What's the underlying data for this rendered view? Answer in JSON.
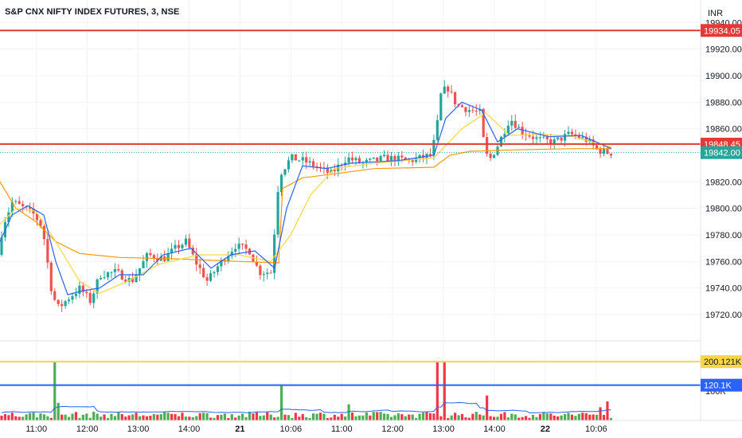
{
  "header": {
    "title": "S&P CNX NIFTY INDEX FUTURES, 3, NSE",
    "currency": "INR"
  },
  "colors": {
    "up": "#26a69a",
    "down": "#ef5350",
    "vol_up": "#4caf50",
    "vol_down": "#f23645",
    "ma_fast": "#2962ff",
    "ma_slow": "#ffd740",
    "vwap": "#ff9800",
    "level_red": "#e53935",
    "level_yellow": "#f9d648",
    "level_blue": "#2962ff",
    "last_price": "#26a69a"
  },
  "chart_data": {
    "type": "candlestick",
    "y_axis": {
      "ylim": [
        19705,
        19945
      ],
      "ticks": [
        "19940.00",
        "19920.00",
        "19900.00",
        "19880.00",
        "19860.00",
        "19820.00",
        "19800.00",
        "19780.00",
        "19760.00",
        "19740.00",
        "19720.00"
      ]
    },
    "x_axis": {
      "ticks": [
        {
          "label": "11:00",
          "bold": false
        },
        {
          "label": "12:00",
          "bold": false
        },
        {
          "label": "13:00",
          "bold": false
        },
        {
          "label": "14:00",
          "bold": false
        },
        {
          "label": "21",
          "bold": true
        },
        {
          "label": "10:06",
          "bold": false
        },
        {
          "label": "11:00",
          "bold": false
        },
        {
          "label": "12:00",
          "bold": false
        },
        {
          "label": "13:00",
          "bold": false
        },
        {
          "label": "14:00",
          "bold": false
        },
        {
          "label": "22",
          "bold": true
        },
        {
          "label": "10:06",
          "bold": false
        }
      ]
    },
    "price_levels": [
      {
        "label": "19934.05",
        "value": 19934.05,
        "color": "level_red"
      },
      {
        "label": "19848.45",
        "value": 19848.45,
        "color": "level_red"
      },
      {
        "label": "19842.00",
        "value": 19842.0,
        "color": "last_price",
        "dotted": true
      }
    ],
    "volume_pane": {
      "ylim": [
        0,
        260
      ],
      "tick": "100K",
      "levels": [
        {
          "label": "200.121K",
          "value": 200.121,
          "color": "level_yellow"
        },
        {
          "label": "120.1K",
          "value": 120.1,
          "color": "level_blue"
        }
      ]
    },
    "anchors": [
      {
        "x": 0,
        "p": 19765
      },
      {
        "x": 10,
        "p": 19790
      },
      {
        "x": 20,
        "p": 19805
      },
      {
        "x": 35,
        "p": 19800
      },
      {
        "x": 48,
        "p": 19795
      },
      {
        "x": 58,
        "p": 19785
      },
      {
        "x": 64,
        "p": 19760
      },
      {
        "x": 70,
        "p": 19735
      },
      {
        "x": 78,
        "p": 19725
      },
      {
        "x": 90,
        "p": 19732
      },
      {
        "x": 105,
        "p": 19740
      },
      {
        "x": 118,
        "p": 19730
      },
      {
        "x": 130,
        "p": 19750
      },
      {
        "x": 150,
        "p": 19752
      },
      {
        "x": 170,
        "p": 19745
      },
      {
        "x": 190,
        "p": 19765
      },
      {
        "x": 210,
        "p": 19762
      },
      {
        "x": 225,
        "p": 19770
      },
      {
        "x": 238,
        "p": 19775
      },
      {
        "x": 250,
        "p": 19760
      },
      {
        "x": 265,
        "p": 19745
      },
      {
        "x": 280,
        "p": 19758
      },
      {
        "x": 300,
        "p": 19772
      },
      {
        "x": 318,
        "p": 19768
      },
      {
        "x": 330,
        "p": 19752
      },
      {
        "x": 345,
        "p": 19752
      },
      {
        "x": 355,
        "p": 19825
      },
      {
        "x": 370,
        "p": 19838
      },
      {
        "x": 385,
        "p": 19836
      },
      {
        "x": 400,
        "p": 19832
      },
      {
        "x": 420,
        "p": 19826
      },
      {
        "x": 440,
        "p": 19838
      },
      {
        "x": 460,
        "p": 19834
      },
      {
        "x": 490,
        "p": 19838
      },
      {
        "x": 520,
        "p": 19836
      },
      {
        "x": 545,
        "p": 19840
      },
      {
        "x": 552,
        "p": 19855
      },
      {
        "x": 558,
        "p": 19885
      },
      {
        "x": 566,
        "p": 19892
      },
      {
        "x": 578,
        "p": 19878
      },
      {
        "x": 595,
        "p": 19874
      },
      {
        "x": 608,
        "p": 19872
      },
      {
        "x": 612,
        "p": 19850
      },
      {
        "x": 618,
        "p": 19835
      },
      {
        "x": 630,
        "p": 19848
      },
      {
        "x": 645,
        "p": 19868
      },
      {
        "x": 660,
        "p": 19858
      },
      {
        "x": 680,
        "p": 19852
      },
      {
        "x": 700,
        "p": 19850
      },
      {
        "x": 720,
        "p": 19856
      },
      {
        "x": 740,
        "p": 19852
      },
      {
        "x": 755,
        "p": 19844
      },
      {
        "x": 768,
        "p": 19842
      }
    ],
    "volume_spikes": [
      {
        "x": 69,
        "v": 200
      },
      {
        "x": 72,
        "v": 60
      },
      {
        "x": 355,
        "v": 120
      },
      {
        "x": 551,
        "v": 200
      },
      {
        "x": 557,
        "v": 200
      },
      {
        "x": 437,
        "v": 55
      },
      {
        "x": 612,
        "v": 85
      },
      {
        "x": 764,
        "v": 65
      },
      {
        "x": 755,
        "v": 45
      }
    ],
    "lines": {
      "vwap": [
        {
          "x": 0,
          "p": 19820
        },
        {
          "x": 20,
          "p": 19800
        },
        {
          "x": 45,
          "p": 19790
        },
        {
          "x": 70,
          "p": 19775
        },
        {
          "x": 100,
          "p": 19766
        },
        {
          "x": 150,
          "p": 19763
        },
        {
          "x": 220,
          "p": 19762
        },
        {
          "x": 300,
          "p": 19760
        },
        {
          "x": 350,
          "p": 19759
        },
        {
          "x": 355,
          "p": 19815
        },
        {
          "x": 380,
          "p": 19823
        },
        {
          "x": 420,
          "p": 19826
        },
        {
          "x": 470,
          "p": 19830
        },
        {
          "x": 545,
          "p": 19831
        },
        {
          "x": 565,
          "p": 19840
        },
        {
          "x": 590,
          "p": 19843
        },
        {
          "x": 640,
          "p": 19844
        },
        {
          "x": 720,
          "p": 19845
        },
        {
          "x": 768,
          "p": 19845
        }
      ],
      "ma_slow": [
        {
          "x": 0,
          "p": 19788
        },
        {
          "x": 20,
          "p": 19800
        },
        {
          "x": 45,
          "p": 19798
        },
        {
          "x": 70,
          "p": 19775
        },
        {
          "x": 100,
          "p": 19745
        },
        {
          "x": 125,
          "p": 19736
        },
        {
          "x": 160,
          "p": 19745
        },
        {
          "x": 200,
          "p": 19758
        },
        {
          "x": 250,
          "p": 19765
        },
        {
          "x": 300,
          "p": 19765
        },
        {
          "x": 340,
          "p": 19760
        },
        {
          "x": 365,
          "p": 19780
        },
        {
          "x": 390,
          "p": 19810
        },
        {
          "x": 420,
          "p": 19830
        },
        {
          "x": 470,
          "p": 19834
        },
        {
          "x": 545,
          "p": 19838
        },
        {
          "x": 580,
          "p": 19860
        },
        {
          "x": 610,
          "p": 19872
        },
        {
          "x": 640,
          "p": 19855
        },
        {
          "x": 680,
          "p": 19856
        },
        {
          "x": 720,
          "p": 19854
        },
        {
          "x": 768,
          "p": 19846
        }
      ],
      "ma_fast": [
        {
          "x": 0,
          "p": 19775
        },
        {
          "x": 15,
          "p": 19795
        },
        {
          "x": 35,
          "p": 19802
        },
        {
          "x": 55,
          "p": 19795
        },
        {
          "x": 70,
          "p": 19760
        },
        {
          "x": 85,
          "p": 19735
        },
        {
          "x": 105,
          "p": 19738
        },
        {
          "x": 125,
          "p": 19740
        },
        {
          "x": 150,
          "p": 19750
        },
        {
          "x": 180,
          "p": 19750
        },
        {
          "x": 205,
          "p": 19765
        },
        {
          "x": 240,
          "p": 19770
        },
        {
          "x": 265,
          "p": 19755
        },
        {
          "x": 290,
          "p": 19765
        },
        {
          "x": 320,
          "p": 19768
        },
        {
          "x": 345,
          "p": 19755
        },
        {
          "x": 360,
          "p": 19800
        },
        {
          "x": 380,
          "p": 19832
        },
        {
          "x": 410,
          "p": 19830
        },
        {
          "x": 440,
          "p": 19834
        },
        {
          "x": 500,
          "p": 19836
        },
        {
          "x": 545,
          "p": 19840
        },
        {
          "x": 560,
          "p": 19868
        },
        {
          "x": 580,
          "p": 19880
        },
        {
          "x": 605,
          "p": 19874
        },
        {
          "x": 625,
          "p": 19850
        },
        {
          "x": 650,
          "p": 19860
        },
        {
          "x": 690,
          "p": 19854
        },
        {
          "x": 730,
          "p": 19855
        },
        {
          "x": 768,
          "p": 19845
        }
      ]
    }
  }
}
